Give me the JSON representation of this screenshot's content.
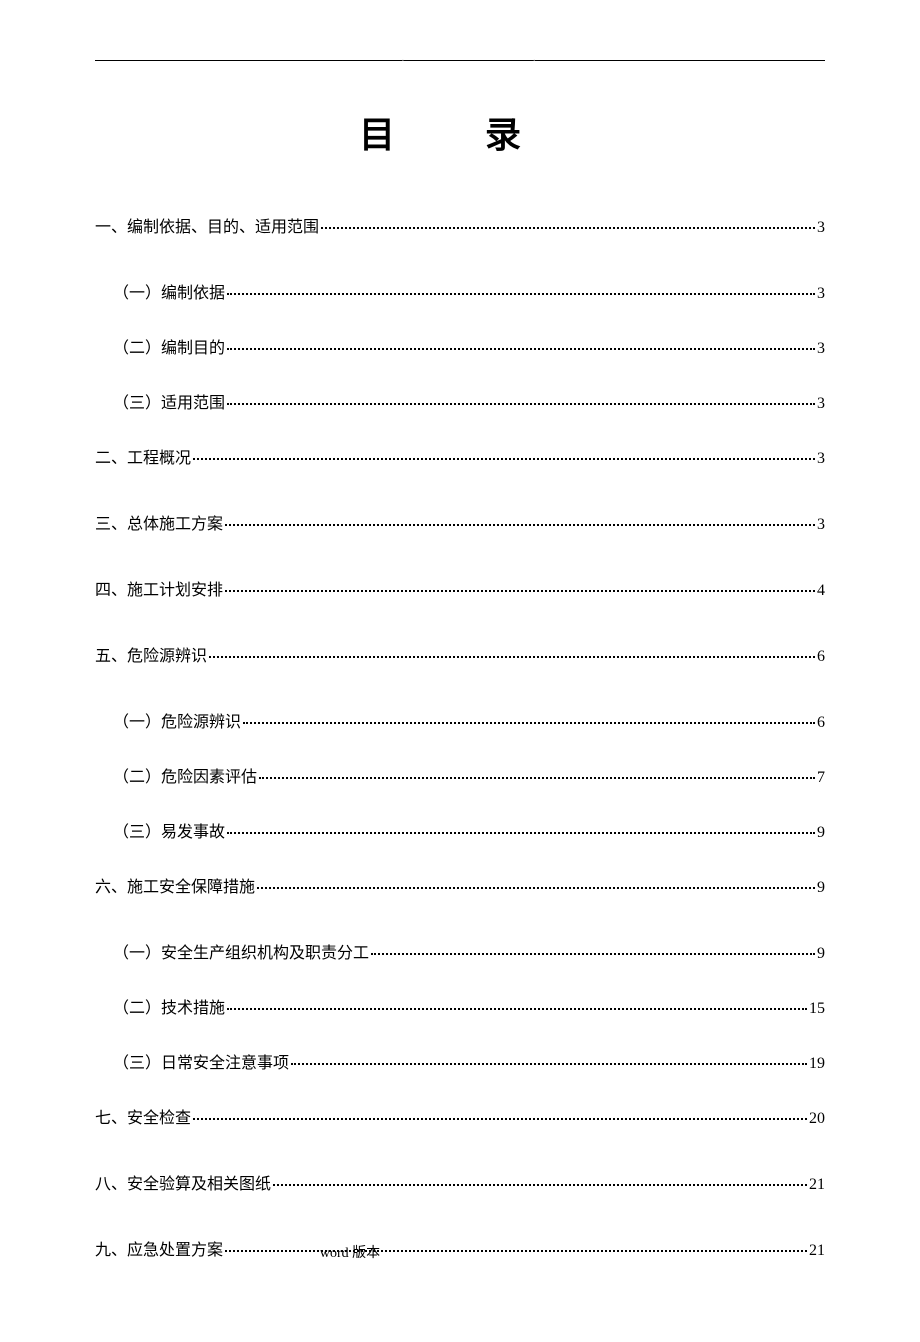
{
  "title": "目 录",
  "footer": "word 版本",
  "toc": [
    {
      "level": 1,
      "label": "一、编制依据、目的、适用范围",
      "page": "3"
    },
    {
      "level": 2,
      "label": "（一）编制依据",
      "page": "3"
    },
    {
      "level": 2,
      "label": "（二）编制目的",
      "page": "3"
    },
    {
      "level": 2,
      "label": "（三）适用范围",
      "page": "3"
    },
    {
      "level": 1,
      "label": "二、工程概况",
      "page": "3"
    },
    {
      "level": 1,
      "label": "三、总体施工方案",
      "page": "3"
    },
    {
      "level": 1,
      "label": "四、施工计划安排",
      "page": "4"
    },
    {
      "level": 1,
      "label": "五、危险源辨识",
      "page": "6"
    },
    {
      "level": 2,
      "label": "（一）危险源辨识",
      "page": "6"
    },
    {
      "level": 2,
      "label": "（二）危险因素评估 ",
      "page": "7"
    },
    {
      "level": 2,
      "label": "（三）易发事故",
      "page": "9"
    },
    {
      "level": 1,
      "label": "六、施工安全保障措施",
      "page": "9"
    },
    {
      "level": 2,
      "label": "（一）安全生产组织机构及职责分工 ",
      "page": "9"
    },
    {
      "level": 2,
      "label": "（二）技术措施",
      "page": "15"
    },
    {
      "level": 2,
      "label": "（三）日常安全注意事项",
      "page": "19"
    },
    {
      "level": 1,
      "label": "七、安全检查",
      "page": "20"
    },
    {
      "level": 1,
      "label": "八、安全验算及相关图纸",
      "page": "21"
    },
    {
      "level": 1,
      "label": "九、应急处置方案 ",
      "page": "21"
    }
  ]
}
